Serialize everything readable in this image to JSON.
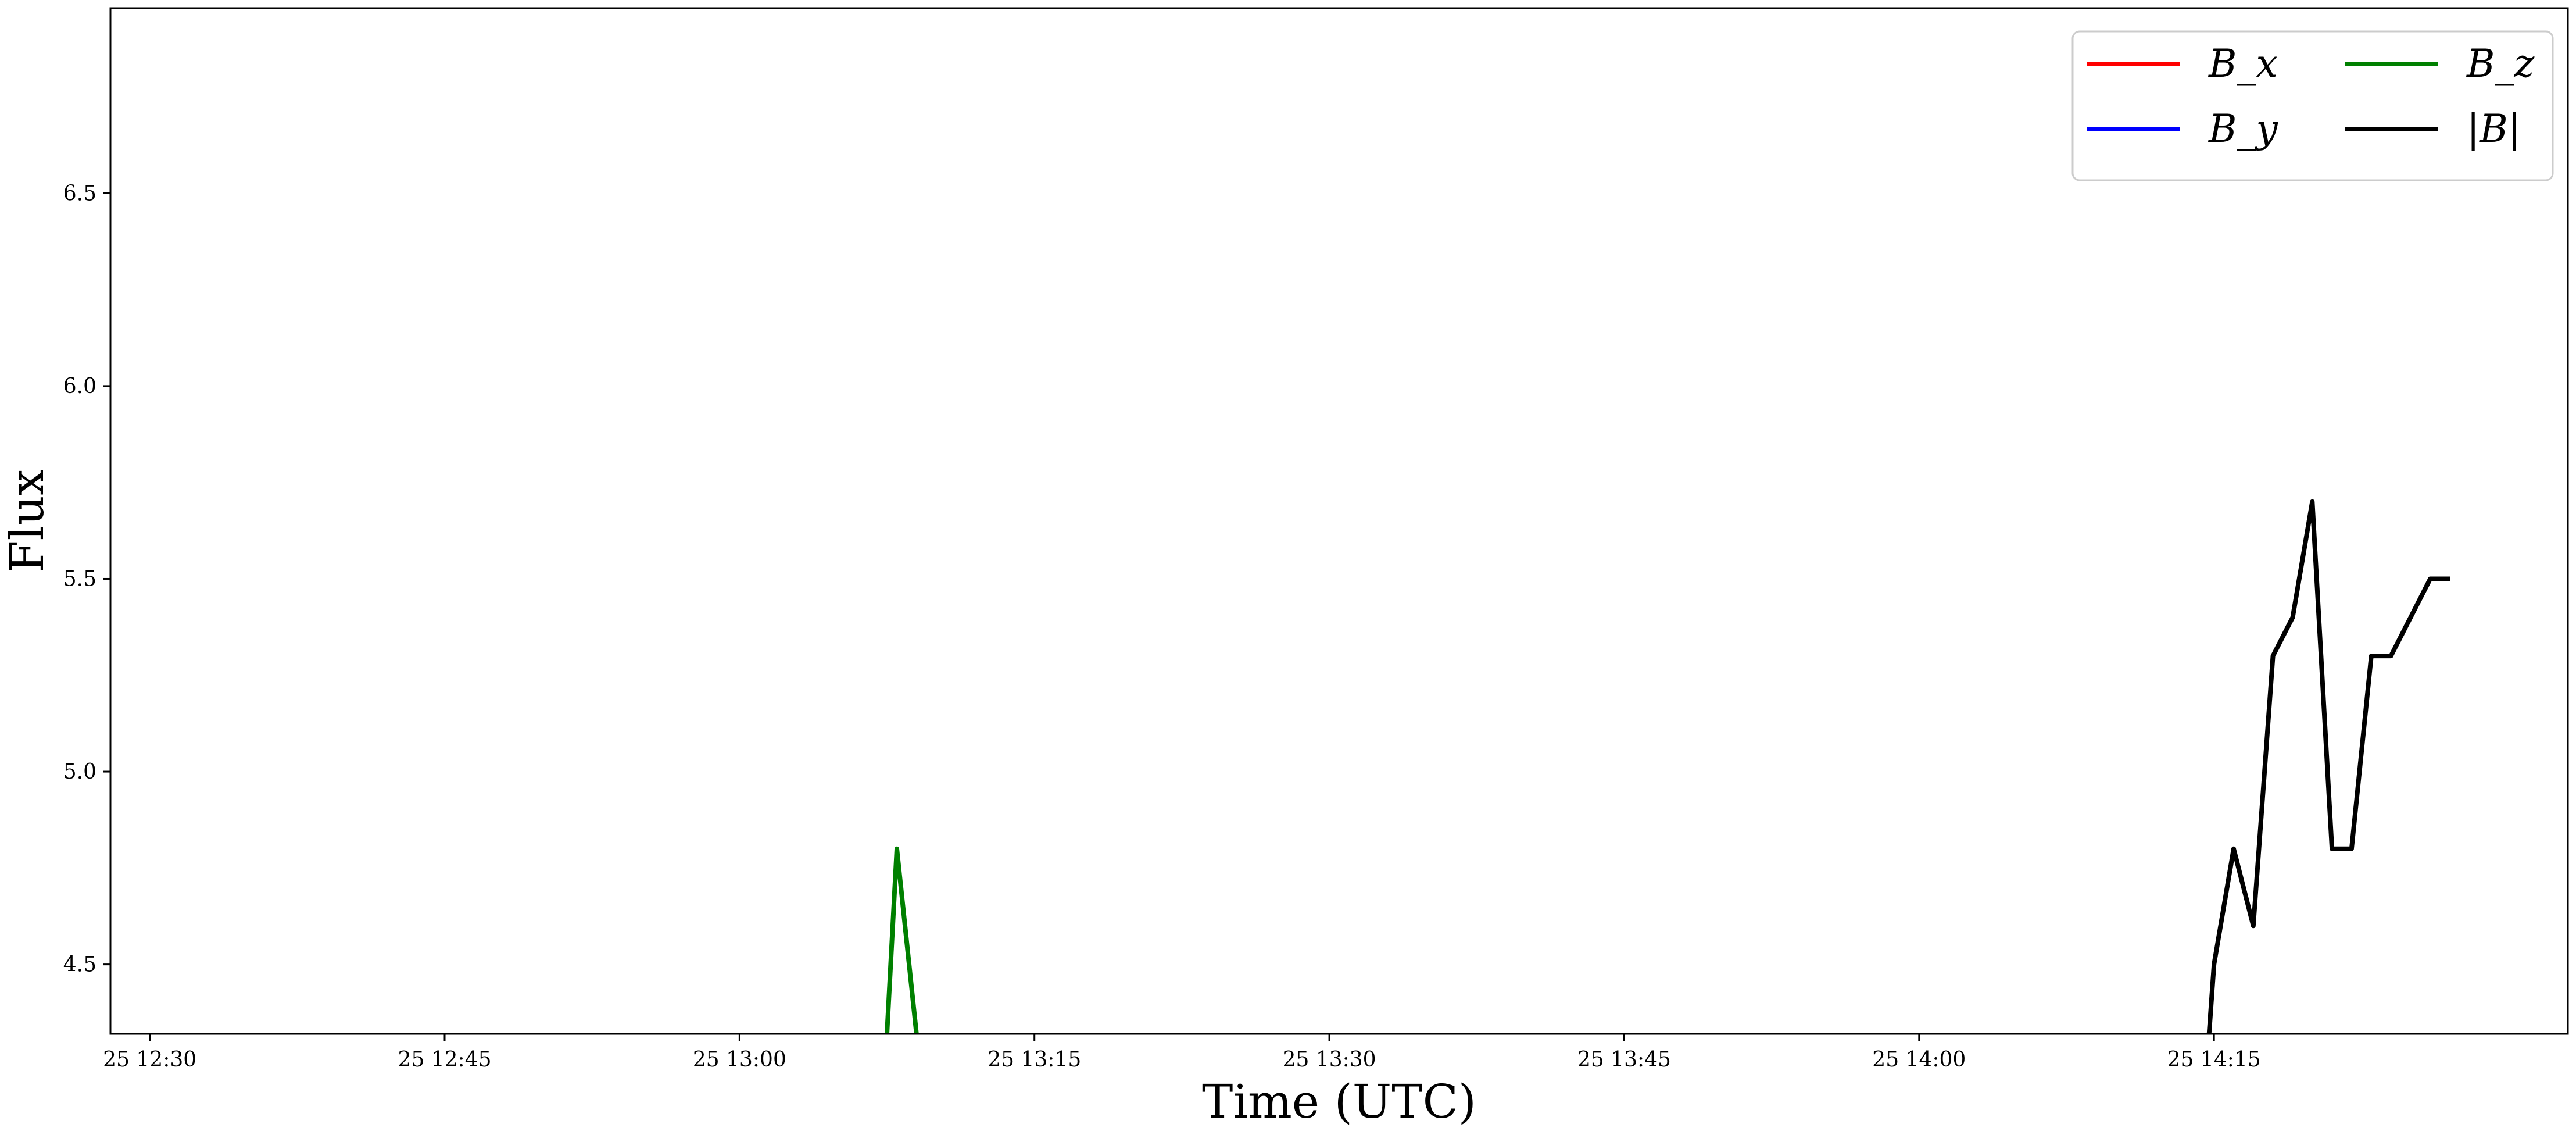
{
  "chart_data": {
    "type": "line",
    "xlabel": "Time (UTC)",
    "ylabel": "Flux",
    "xlim": [
      "25 12:28",
      "25 14:33"
    ],
    "ylim": [
      4.32,
      6.98
    ],
    "x_ticks": [
      "25 12:30",
      "25 12:45",
      "25 13:00",
      "25 13:15",
      "25 13:30",
      "25 13:45",
      "25 14:00",
      "25 14:15"
    ],
    "y_ticks": [
      "4.5",
      "5.0",
      "5.5",
      "6.0",
      "6.5"
    ],
    "grid": false,
    "legend": {
      "placement": "top-right",
      "columns": 2
    },
    "series": [
      {
        "name": "B_x",
        "color": "#ff0000",
        "points": []
      },
      {
        "name": "B_y",
        "color": "#0000ff",
        "points": []
      },
      {
        "name": "B_z",
        "color": "#008000",
        "points": [
          [
            "25 13:07:30",
            4.32
          ],
          [
            "25 13:08:00",
            4.8
          ],
          [
            "25 13:09:00",
            4.32
          ]
        ]
      },
      {
        "name": "|B|",
        "color": "#000000",
        "points": [
          [
            "25 14:14:45",
            4.32
          ],
          [
            "25 14:15:00",
            4.5
          ],
          [
            "25 14:16:00",
            4.8
          ],
          [
            "25 14:17:00",
            4.6
          ],
          [
            "25 14:18:00",
            5.3
          ],
          [
            "25 14:19:00",
            5.4
          ],
          [
            "25 14:20:00",
            5.7
          ],
          [
            "25 14:21:00",
            4.8
          ],
          [
            "25 14:22:00",
            4.8
          ],
          [
            "25 14:23:00",
            5.3
          ],
          [
            "25 14:24:00",
            5.3
          ],
          [
            "25 14:26:00",
            5.5
          ],
          [
            "25 14:27:00",
            5.5
          ]
        ]
      }
    ]
  }
}
